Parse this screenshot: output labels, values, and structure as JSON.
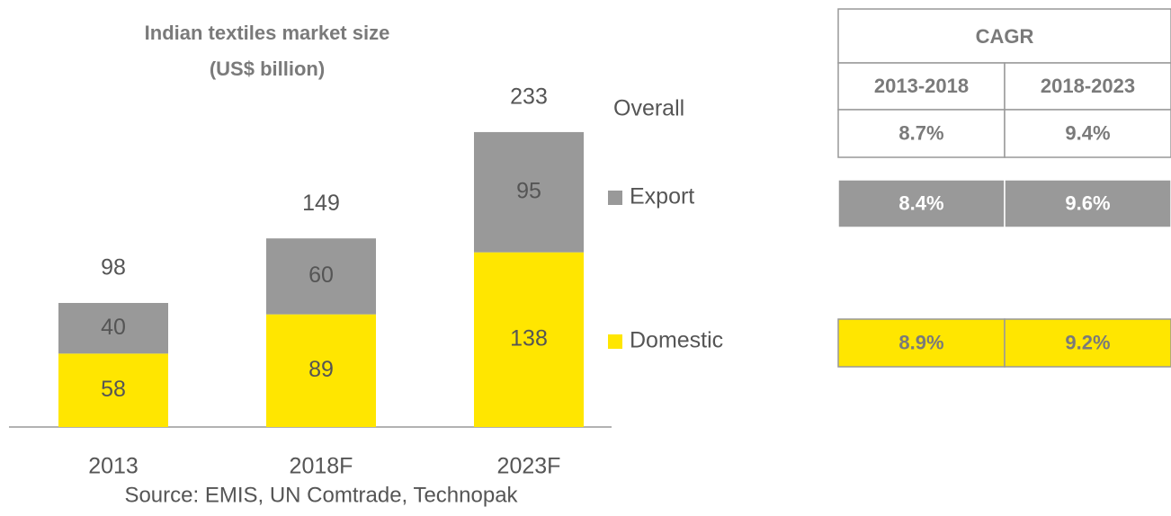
{
  "chart_data": {
    "type": "stacked_bar",
    "title": "Indian textiles market size",
    "subtitle": "(US$ billion)",
    "categories": [
      "2013",
      "2018F",
      "2023F"
    ],
    "series": [
      {
        "name": "Domestic",
        "color": "#ffe600",
        "values": [
          58,
          89,
          138
        ]
      },
      {
        "name": "Export",
        "color": "#999999",
        "values": [
          40,
          60,
          95
        ]
      }
    ],
    "totals": [
      98,
      149,
      233
    ],
    "total_label": "Overall",
    "ylim": [
      0,
      250
    ],
    "source": "Source: EMIS, UN Comtrade, Technopak"
  },
  "cagr_table": {
    "title": "CAGR",
    "columns": [
      "2013-2018",
      "2018-2023"
    ],
    "rows": [
      [
        "8.7%",
        "9.4%"
      ],
      [
        "8.4%",
        "9.6%"
      ],
      [
        "8.9%",
        "9.2%"
      ]
    ],
    "row_colors": [
      "#ffffff",
      "#999999",
      "#ffe600"
    ]
  }
}
